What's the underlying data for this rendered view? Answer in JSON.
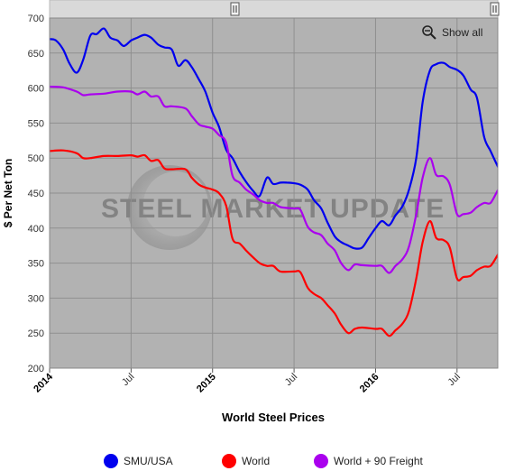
{
  "chart_data": {
    "type": "line",
    "xlabel": "World Steel Prices",
    "ylabel": "$ Per Net Ton",
    "ylim": [
      200,
      700
    ],
    "y_ticks": [
      200,
      250,
      300,
      350,
      400,
      450,
      500,
      550,
      600,
      650,
      700
    ],
    "x_range": [
      "2014-01",
      "2016-10"
    ],
    "x_ticks": [
      {
        "label": "2014",
        "x": "2014-01",
        "major": true
      },
      {
        "label": "Jul",
        "x": "2014-07",
        "major": false
      },
      {
        "label": "2015",
        "x": "2015-01",
        "major": true
      },
      {
        "label": "Jul",
        "x": "2015-07",
        "major": false
      },
      {
        "label": "2016",
        "x": "2016-01",
        "major": true
      },
      {
        "label": "Jul",
        "x": "2016-07",
        "major": false
      }
    ],
    "grid": true,
    "legend_position": "bottom",
    "watermark": "STEEL MARKET UPDATE",
    "show_all_label": "Show all",
    "series": [
      {
        "name": "SMU/USA",
        "color": "#0000ee",
        "points": [
          [
            "2014-01-01",
            670
          ],
          [
            "2014-01-15",
            668
          ],
          [
            "2014-02-01",
            655
          ],
          [
            "2014-02-15",
            635
          ],
          [
            "2014-03-01",
            622
          ],
          [
            "2014-03-15",
            640
          ],
          [
            "2014-04-01",
            675
          ],
          [
            "2014-04-15",
            677
          ],
          [
            "2014-05-01",
            685
          ],
          [
            "2014-05-15",
            672
          ],
          [
            "2014-06-01",
            668
          ],
          [
            "2014-06-15",
            660
          ],
          [
            "2014-07-01",
            668
          ],
          [
            "2014-07-15",
            672
          ],
          [
            "2014-08-01",
            676
          ],
          [
            "2014-08-15",
            672
          ],
          [
            "2014-09-01",
            662
          ],
          [
            "2014-09-15",
            658
          ],
          [
            "2014-10-01",
            655
          ],
          [
            "2014-10-15",
            632
          ],
          [
            "2014-11-01",
            640
          ],
          [
            "2014-11-15",
            630
          ],
          [
            "2014-12-01",
            612
          ],
          [
            "2014-12-15",
            595
          ],
          [
            "2015-01-01",
            565
          ],
          [
            "2015-01-15",
            545
          ],
          [
            "2015-02-01",
            512
          ],
          [
            "2015-02-15",
            500
          ],
          [
            "2015-03-01",
            480
          ],
          [
            "2015-03-15",
            466
          ],
          [
            "2015-04-01",
            453
          ],
          [
            "2015-04-15",
            446
          ],
          [
            "2015-05-01",
            472
          ],
          [
            "2015-05-15",
            463
          ],
          [
            "2015-06-01",
            465
          ],
          [
            "2015-06-15",
            465
          ],
          [
            "2015-07-01",
            464
          ],
          [
            "2015-07-15",
            462
          ],
          [
            "2015-08-01",
            455
          ],
          [
            "2015-08-15",
            440
          ],
          [
            "2015-09-01",
            428
          ],
          [
            "2015-09-15",
            408
          ],
          [
            "2015-10-01",
            388
          ],
          [
            "2015-10-15",
            380
          ],
          [
            "2015-11-01",
            375
          ],
          [
            "2015-11-15",
            371
          ],
          [
            "2015-12-01",
            372
          ],
          [
            "2015-12-15",
            385
          ],
          [
            "2016-01-01",
            400
          ],
          [
            "2016-01-15",
            410
          ],
          [
            "2016-02-01",
            404
          ],
          [
            "2016-02-15",
            418
          ],
          [
            "2016-03-01",
            432
          ],
          [
            "2016-03-15",
            455
          ],
          [
            "2016-04-01",
            500
          ],
          [
            "2016-04-15",
            580
          ],
          [
            "2016-05-01",
            625
          ],
          [
            "2016-05-15",
            634
          ],
          [
            "2016-06-01",
            636
          ],
          [
            "2016-06-15",
            630
          ],
          [
            "2016-07-01",
            626
          ],
          [
            "2016-07-15",
            618
          ],
          [
            "2016-08-01",
            598
          ],
          [
            "2016-08-15",
            586
          ],
          [
            "2016-09-01",
            530
          ],
          [
            "2016-09-15",
            510
          ],
          [
            "2016-10-01",
            488
          ],
          [
            "2016-10-15",
            472
          ]
        ]
      },
      {
        "name": "World",
        "color": "#ff0000",
        "points": [
          [
            "2014-01-01",
            510
          ],
          [
            "2014-02-01",
            511
          ],
          [
            "2014-03-01",
            507
          ],
          [
            "2014-03-15",
            500
          ],
          [
            "2014-04-01",
            500
          ],
          [
            "2014-05-01",
            503
          ],
          [
            "2014-06-01",
            503
          ],
          [
            "2014-07-01",
            504
          ],
          [
            "2014-07-15",
            502
          ],
          [
            "2014-08-01",
            504
          ],
          [
            "2014-08-15",
            496
          ],
          [
            "2014-09-01",
            497
          ],
          [
            "2014-09-15",
            485
          ],
          [
            "2014-10-01",
            484
          ],
          [
            "2014-11-01",
            484
          ],
          [
            "2014-11-15",
            472
          ],
          [
            "2014-12-01",
            462
          ],
          [
            "2014-12-15",
            458
          ],
          [
            "2015-01-01",
            455
          ],
          [
            "2015-01-15",
            450
          ],
          [
            "2015-02-01",
            432
          ],
          [
            "2015-02-15",
            385
          ],
          [
            "2015-03-01",
            378
          ],
          [
            "2015-03-15",
            368
          ],
          [
            "2015-04-01",
            358
          ],
          [
            "2015-04-15",
            350
          ],
          [
            "2015-05-01",
            346
          ],
          [
            "2015-05-15",
            346
          ],
          [
            "2015-06-01",
            338
          ],
          [
            "2015-07-01",
            338
          ],
          [
            "2015-07-15",
            337
          ],
          [
            "2015-08-01",
            315
          ],
          [
            "2015-08-15",
            306
          ],
          [
            "2015-09-01",
            300
          ],
          [
            "2015-09-15",
            290
          ],
          [
            "2015-10-01",
            278
          ],
          [
            "2015-10-15",
            262
          ],
          [
            "2015-11-01",
            250
          ],
          [
            "2015-11-15",
            256
          ],
          [
            "2015-12-01",
            258
          ],
          [
            "2016-01-01",
            256
          ],
          [
            "2016-01-15",
            256
          ],
          [
            "2016-02-01",
            246
          ],
          [
            "2016-02-15",
            254
          ],
          [
            "2016-03-01",
            264
          ],
          [
            "2016-03-15",
            282
          ],
          [
            "2016-04-01",
            328
          ],
          [
            "2016-04-15",
            380
          ],
          [
            "2016-05-01",
            410
          ],
          [
            "2016-05-15",
            386
          ],
          [
            "2016-06-01",
            383
          ],
          [
            "2016-06-15",
            372
          ],
          [
            "2016-07-01",
            328
          ],
          [
            "2016-07-15",
            330
          ],
          [
            "2016-08-01",
            332
          ],
          [
            "2016-08-15",
            340
          ],
          [
            "2016-09-01",
            345
          ],
          [
            "2016-09-15",
            346
          ],
          [
            "2016-10-01",
            362
          ],
          [
            "2016-10-15",
            378
          ]
        ]
      },
      {
        "name": "World + 90 Freight",
        "color": "#aa00ee",
        "points": [
          [
            "2014-01-01",
            602
          ],
          [
            "2014-02-01",
            601
          ],
          [
            "2014-03-01",
            595
          ],
          [
            "2014-03-15",
            590
          ],
          [
            "2014-04-01",
            591
          ],
          [
            "2014-05-01",
            592
          ],
          [
            "2014-06-01",
            595
          ],
          [
            "2014-07-01",
            595
          ],
          [
            "2014-07-15",
            591
          ],
          [
            "2014-08-01",
            595
          ],
          [
            "2014-08-15",
            588
          ],
          [
            "2014-09-01",
            588
          ],
          [
            "2014-09-15",
            574
          ],
          [
            "2014-10-01",
            574
          ],
          [
            "2014-11-01",
            571
          ],
          [
            "2014-11-15",
            560
          ],
          [
            "2014-12-01",
            548
          ],
          [
            "2014-12-15",
            545
          ],
          [
            "2015-01-01",
            542
          ],
          [
            "2015-01-15",
            533
          ],
          [
            "2015-02-01",
            522
          ],
          [
            "2015-02-15",
            475
          ],
          [
            "2015-03-01",
            465
          ],
          [
            "2015-03-15",
            455
          ],
          [
            "2015-04-01",
            448
          ],
          [
            "2015-04-15",
            440
          ],
          [
            "2015-05-01",
            436
          ],
          [
            "2015-05-15",
            436
          ],
          [
            "2015-06-01",
            430
          ],
          [
            "2015-07-01",
            428
          ],
          [
            "2015-07-15",
            426
          ],
          [
            "2015-08-01",
            402
          ],
          [
            "2015-08-15",
            394
          ],
          [
            "2015-09-01",
            390
          ],
          [
            "2015-09-15",
            378
          ],
          [
            "2015-10-01",
            368
          ],
          [
            "2015-10-15",
            350
          ],
          [
            "2015-11-01",
            340
          ],
          [
            "2015-11-15",
            348
          ],
          [
            "2015-12-01",
            347
          ],
          [
            "2016-01-01",
            346
          ],
          [
            "2016-01-15",
            346
          ],
          [
            "2016-02-01",
            336
          ],
          [
            "2016-02-15",
            346
          ],
          [
            "2016-03-01",
            356
          ],
          [
            "2016-03-15",
            374
          ],
          [
            "2016-04-01",
            420
          ],
          [
            "2016-04-15",
            472
          ],
          [
            "2016-05-01",
            500
          ],
          [
            "2016-05-15",
            476
          ],
          [
            "2016-06-01",
            474
          ],
          [
            "2016-06-15",
            462
          ],
          [
            "2016-07-01",
            420
          ],
          [
            "2016-07-15",
            420
          ],
          [
            "2016-08-01",
            422
          ],
          [
            "2016-08-15",
            430
          ],
          [
            "2016-09-01",
            436
          ],
          [
            "2016-09-15",
            436
          ],
          [
            "2016-10-01",
            454
          ],
          [
            "2016-10-15",
            468
          ]
        ]
      }
    ]
  }
}
